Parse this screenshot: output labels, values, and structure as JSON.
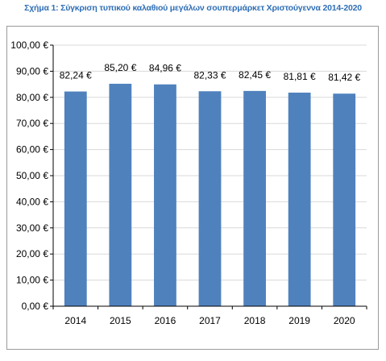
{
  "title": "Σχήμα 1: Σύγκριση τυπικού καλαθιού μεγάλων σουπερμάρκετ Χριστούγεννα 2014-2020",
  "colors": {
    "title": "#2f6fb5",
    "bar": "#4f81bd",
    "grid": "#d9d9d9",
    "axis": "#000000"
  },
  "chart_data": {
    "type": "bar",
    "title": "Σχήμα 1: Σύγκριση τυπικού καλαθιού μεγάλων σουπερμάρκετ Χριστούγεννα 2014-2020",
    "categories": [
      "2014",
      "2015",
      "2016",
      "2017",
      "2018",
      "2019",
      "2020"
    ],
    "values": [
      82.24,
      85.2,
      84.96,
      82.33,
      82.45,
      81.81,
      81.42
    ],
    "data_labels": [
      "82,24 €",
      "85,20 €",
      "84,96 €",
      "82,33 €",
      "82,45 €",
      "81,81 €",
      "81,42 €"
    ],
    "y_ticks": [
      0,
      10,
      20,
      30,
      40,
      50,
      60,
      70,
      80,
      90,
      100
    ],
    "y_tick_labels": [
      "0,00 €",
      "10,00 €",
      "20,00 €",
      "30,00 €",
      "40,00 €",
      "50,00 €",
      "60,00 €",
      "70,00 €",
      "80,00 €",
      "90,00 €",
      "100,00 €"
    ],
    "xlabel": "",
    "ylabel": "",
    "ylim": [
      0,
      100
    ],
    "grid": true,
    "legend": "none"
  }
}
